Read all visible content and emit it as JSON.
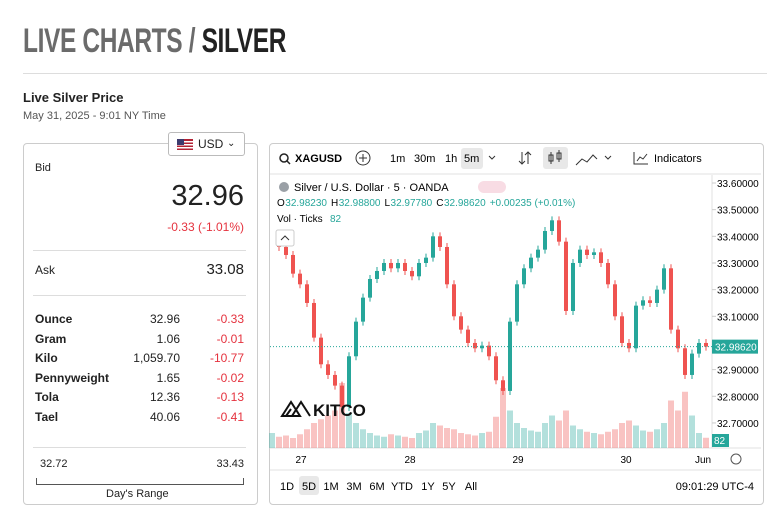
{
  "header": {
    "title_prefix": "LIVE CHARTS /",
    "title_main": "SILVER"
  },
  "price_info": {
    "heading": "Live Silver Price",
    "timestamp": "May 31, 2025 - 9:01 NY Time",
    "currency": "USD",
    "bid_label": "Bid",
    "bid": "32.96",
    "change": "-0.33 (-1.01%)",
    "ask_label": "Ask",
    "ask": "33.08",
    "units": [
      [
        "Ounce",
        "32.96",
        "-0.33"
      ],
      [
        "Gram",
        "1.06",
        "-0.01"
      ],
      [
        "Kilo",
        "1,059.70",
        "-10.77"
      ],
      [
        "Pennyweight",
        "1.65",
        "-0.02"
      ],
      [
        "Tola",
        "12.36",
        "-0.13"
      ],
      [
        "Tael",
        "40.06",
        "-0.41"
      ]
    ],
    "range_low": "32.72",
    "range_high": "33.43",
    "range_label": "Day's Range"
  },
  "toolbar": {
    "symbol": "XAGUSD",
    "intervals": [
      "1m",
      "30m",
      "1h",
      "5m"
    ],
    "active_interval": "5m",
    "indicators": "Indicators"
  },
  "legend": {
    "name": "Silver / U.S. Dollar · 5 · OANDA",
    "ohlc": [
      [
        "O",
        "32.98230"
      ],
      [
        "H",
        "32.98800"
      ],
      [
        "L",
        "32.97780"
      ],
      [
        "C",
        "32.98620"
      ]
    ],
    "delta": "+0.00235 (+0.01%)",
    "volume_label": "Vol · Ticks",
    "volume": "82"
  },
  "chart_data": {
    "type": "candlestick",
    "prices": [
      33.38,
      33.36,
      33.33,
      33.26,
      33.22,
      33.15,
      33.02,
      32.92,
      32.88,
      32.84,
      32.76,
      32.95,
      33.08,
      33.17,
      33.24,
      33.27,
      33.3,
      33.28,
      33.3,
      33.27,
      33.25,
      33.3,
      33.32,
      33.4,
      33.36,
      33.22,
      33.1,
      33.05,
      33.0,
      32.98,
      32.99,
      32.95,
      32.86,
      32.82,
      33.08,
      33.22,
      33.28,
      33.32,
      33.35,
      33.42,
      33.46,
      33.38,
      33.12,
      33.3,
      33.35,
      33.33,
      33.34,
      33.3,
      33.22,
      33.1,
      33.0,
      32.98,
      33.14,
      33.16,
      33.15,
      33.2,
      33.28,
      33.05,
      32.98,
      32.88,
      32.96,
      33.0,
      32.9862
    ],
    "volumes": [
      120,
      90,
      100,
      80,
      110,
      150,
      200,
      230,
      260,
      300,
      520,
      280,
      200,
      150,
      120,
      100,
      90,
      110,
      100,
      90,
      80,
      120,
      140,
      200,
      180,
      160,
      150,
      120,
      110,
      100,
      120,
      130,
      250,
      480,
      300,
      200,
      160,
      140,
      130,
      200,
      260,
      220,
      300,
      180,
      150,
      130,
      120,
      110,
      130,
      150,
      200,
      220,
      180,
      140,
      130,
      150,
      200,
      380,
      300,
      450,
      260,
      120,
      82
    ],
    "ylim": [
      32.606,
      33.63
    ],
    "yticks": [
      {
        "value": 33.6,
        "label": "33.60000"
      },
      {
        "value": 33.5,
        "label": "33.50000"
      },
      {
        "value": 33.4,
        "label": "33.40000"
      },
      {
        "value": 33.3,
        "label": "33.30000"
      },
      {
        "value": 33.2,
        "label": "33.20000"
      },
      {
        "value": 33.1,
        "label": "33.10000"
      },
      {
        "value": 32.9,
        "label": "32.90000"
      },
      {
        "value": 32.8,
        "label": "32.80000"
      },
      {
        "value": 32.7,
        "label": "32.70000"
      }
    ],
    "last_price": {
      "value": 32.9862,
      "label": "32.98620"
    },
    "x_labels": [
      "27",
      "28",
      "29",
      "30",
      "Jun"
    ],
    "up_color": "#26a69a",
    "down_color": "#ef5350"
  },
  "footer": {
    "ranges": [
      "1D",
      "5D",
      "1M",
      "3M",
      "6M",
      "YTD",
      "1Y",
      "5Y",
      "All"
    ],
    "active_range": "5D",
    "clock": "09:01:29 UTC-4"
  }
}
